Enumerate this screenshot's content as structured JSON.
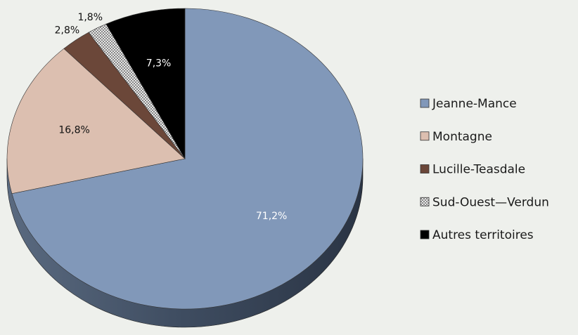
{
  "chart_data": {
    "type": "pie",
    "categories": [
      "Jeanne-Mance",
      "Montagne",
      "Lucille-Teasdale",
      "Sud-Ouest—Verdun",
      "Autres territoires"
    ],
    "values": [
      71.2,
      16.8,
      2.8,
      1.8,
      7.3
    ],
    "value_labels": [
      "71,2%",
      "16,8%",
      "2,8%",
      "1,8%",
      "7,3%"
    ],
    "colors": [
      "#8198b9",
      "#dcbfb0",
      "#6b4739",
      "#c4c4c4",
      "#000000"
    ],
    "legend": "right"
  }
}
